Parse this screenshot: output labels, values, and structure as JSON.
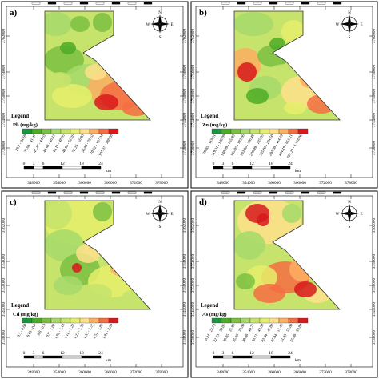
{
  "panels": [
    {
      "letter": "a)",
      "legend_title": "Legend",
      "variable": "Pb (mg/kg)",
      "classes": [
        "20.2 - 34.69",
        "34.69 - 41.47",
        "41.47 - 44.63",
        "44.63 - 46.11",
        "46.11 - 48.05",
        "48.05 - 52.26",
        "52.26 - 56.86",
        "56.86 - 70.52",
        "70.52 - 107.34",
        "107.37 - 388.88"
      ],
      "x_ticks": [
        "348000",
        "354000",
        "360000",
        "366000",
        "372000",
        "378000"
      ],
      "y_ticks": [
        "3762000",
        "3756000",
        "3750000",
        "3744000",
        "3738000"
      ]
    },
    {
      "letter": "b)",
      "legend_title": "Legend",
      "variable": "Zn (mg/kg)",
      "classes": [
        "79.85 - 119.31",
        "119.31 - 148.09",
        "148.09 - 165.85",
        "165.85 - 183.06",
        "183.06 - 206.49",
        "206.49 - 235.05",
        "235.05 - 294.50",
        "294.50 - 414.19",
        "414.19 - 651.21",
        "651.21 - 1,118.06"
      ],
      "x_ticks": [
        "348000",
        "354000",
        "360000",
        "366000",
        "372000",
        "378000"
      ],
      "y_ticks": [
        "3762000",
        "3756000",
        "3750000",
        "3744000",
        "3738000"
      ]
    },
    {
      "letter": "c)",
      "legend_title": "Legend",
      "variable": "Cd (mg/kg)",
      "classes": [
        "0.5 - 0.68",
        "0.68 - 0.8",
        "0.8 - 0.9",
        "0.9 - 1.02",
        "1.02 - 1.14",
        "1.14 - 1.22",
        "1.22 - 1.33",
        "1.33 - 1.51",
        "1.51 - 1.81",
        "1.81 - 2.69"
      ],
      "x_ticks": [
        "348000",
        "354000",
        "360000",
        "366000",
        "372000",
        "378000"
      ],
      "y_ticks": [
        "3762000",
        "3756000",
        "3750000",
        "3744000",
        "3738000"
      ]
    },
    {
      "letter": "d)",
      "legend_title": "Legend",
      "variable": "As (mg/kg)",
      "classes": [
        "0.24 - 22.73",
        "22.73 - 30.05",
        "30.05 - 35.85",
        "35.85 - 38.00",
        "38.00 - 40.71",
        "40.71 - 43.64",
        "43.64 - 47.84",
        "47.84 - 51.45",
        "51.45 - 55.00",
        "55.00 - 59.84"
      ],
      "x_ticks": [
        "348000",
        "354000",
        "360000",
        "366000",
        "372000",
        "378000"
      ],
      "y_ticks": [
        "3762000",
        "3756000",
        "3750000",
        "3744000",
        "3738000"
      ]
    }
  ],
  "scale_bar": {
    "ticks": [
      "0",
      "3",
      "6",
      "12",
      "18",
      "24"
    ],
    "unit": "km"
  },
  "north_arrow": {
    "n": "N",
    "s": "S",
    "e": "E",
    "w": "W"
  },
  "palette": [
    "#1a9641",
    "#4dac26",
    "#7bc043",
    "#a6d96a",
    "#c6e36b",
    "#e6ef6b",
    "#fee08b",
    "#fdae61",
    "#f46d43",
    "#d7191c"
  ]
}
